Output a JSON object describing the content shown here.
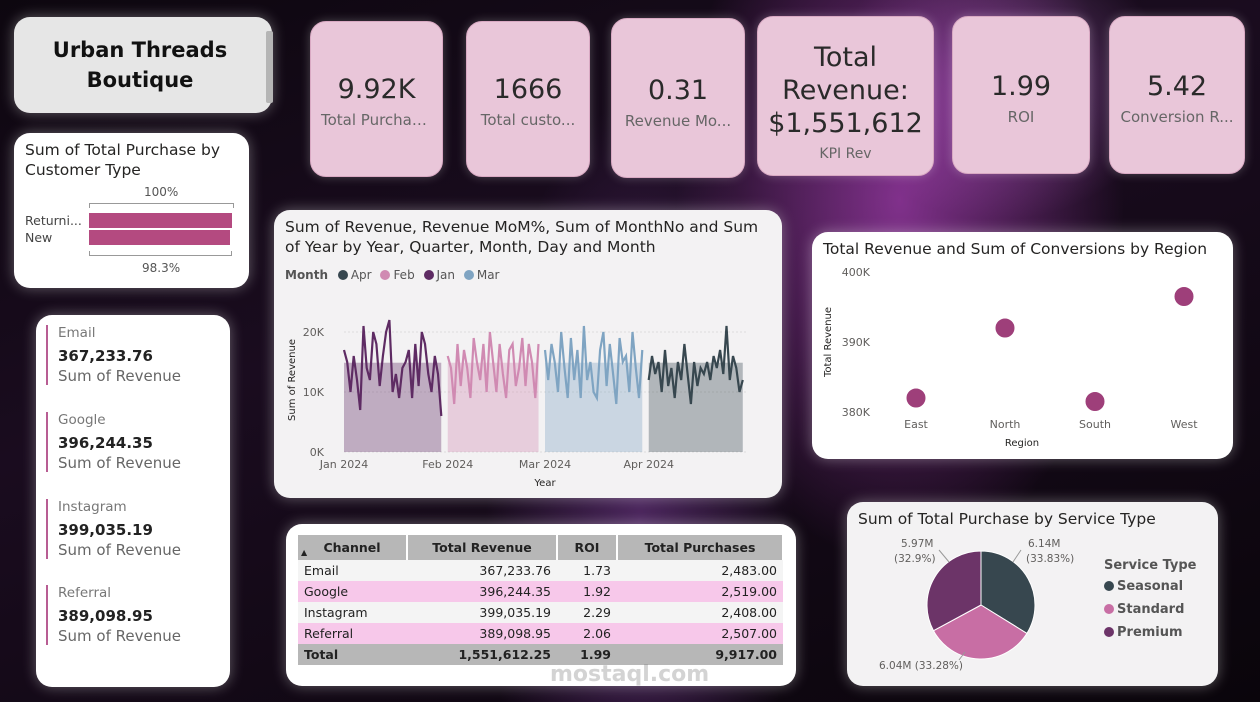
{
  "header": {
    "title": "Urban Threads Boutique"
  },
  "kpis": [
    {
      "value": "9.92K",
      "label": "Total Purchases"
    },
    {
      "value": "1666",
      "label": "Total custo..."
    },
    {
      "value": "0.31",
      "label": "Revenue Mo..."
    },
    {
      "value": "Total Revenue: $1,551,612",
      "label": "KPI Rev"
    },
    {
      "value": "1.99",
      "label": "ROI"
    },
    {
      "value": "5.42",
      "label": "Conversion R..."
    }
  ],
  "customer_type": {
    "title": "Sum of Total Purchase by Customer Type",
    "top_label": "100%",
    "bottom_label": "98.3%",
    "categories": [
      "Returni...",
      "New"
    ],
    "values": [
      100,
      98.3
    ],
    "color": "#b44a80"
  },
  "channel_cards": [
    {
      "name": "Email",
      "value": "367,233.76",
      "sub": "Sum of Revenue"
    },
    {
      "name": "Google",
      "value": "396,244.35",
      "sub": "Sum of Revenue"
    },
    {
      "name": "Instagram",
      "value": "399,035.19",
      "sub": "Sum of Revenue"
    },
    {
      "name": "Referral",
      "value": "389,098.95",
      "sub": "Sum of Revenue"
    }
  ],
  "table": {
    "headers": [
      "Channel",
      "Total Revenue",
      "ROI",
      "Total Purchases"
    ],
    "rows": [
      [
        "Email",
        "367,233.76",
        "1.73",
        "2,483.00"
      ],
      [
        "Google",
        "396,244.35",
        "1.92",
        "2,519.00"
      ],
      [
        "Instagram",
        "399,035.19",
        "2.29",
        "2,408.00"
      ],
      [
        "Referral",
        "389,098.95",
        "2.06",
        "2,507.00"
      ]
    ],
    "total": [
      "Total",
      "1,551,612.25",
      "1.99",
      "9,917.00"
    ]
  },
  "watermark": {
    "text": "mostaql.com"
  },
  "colors": {
    "accent": "#b85d93",
    "kpi_bg": "#e9c6d9",
    "jan": "#5e2b63",
    "feb": "#d08ab2",
    "mar": "#7fa4c2",
    "apr": "#37474f"
  },
  "chart_data": [
    {
      "type": "area",
      "title": "Sum of Revenue, Revenue MoM%, Sum of MonthNo and Sum of Year by Year, Quarter, Month, Day and Month",
      "legend_title": "Month",
      "legend_position": "top-left",
      "xlabel": "Year",
      "ylabel": "Sum of Revenue",
      "x_ticks": [
        "Jan 2024",
        "Feb 2024",
        "Mar 2024",
        "Apr 2024"
      ],
      "y_ticks": [
        "0K",
        "10K",
        "20K"
      ],
      "ylim": [
        0,
        24000
      ],
      "series": [
        {
          "name": "Jan",
          "color": "#5e2b63",
          "values": [
            17000,
            15000,
            10000,
            16000,
            12000,
            7000,
            21000,
            14000,
            12000,
            20000,
            18000,
            11000,
            16000,
            20000,
            22000,
            10000,
            13000,
            9000,
            14000,
            15000,
            17000,
            9000,
            18000,
            11000,
            20000,
            18000,
            13000,
            10000,
            16000,
            13000,
            6000
          ]
        },
        {
          "name": "Feb",
          "color": "#d08ab2",
          "values": [
            16000,
            14000,
            8000,
            18000,
            11000,
            17000,
            14000,
            9000,
            19000,
            15000,
            12000,
            18000,
            10000,
            20000,
            15000,
            10000,
            18000,
            13000,
            9000,
            17000,
            18000,
            11000,
            14000,
            19000,
            11000,
            18000,
            15000,
            9000,
            18000
          ]
        },
        {
          "name": "Mar",
          "color": "#7fa4c2",
          "values": [
            17000,
            12000,
            18000,
            15000,
            10000,
            20000,
            14000,
            9000,
            19000,
            12000,
            17000,
            9000,
            21000,
            12000,
            15000,
            10000,
            9000,
            17000,
            20000,
            11000,
            18000,
            13000,
            8000,
            19000,
            15000,
            16000,
            10000,
            20000,
            14000,
            9000,
            17000
          ]
        },
        {
          "name": "Apr",
          "color": "#37474f",
          "values": [
            12000,
            16000,
            13000,
            15000,
            10000,
            17000,
            11000,
            14000,
            9000,
            15000,
            12000,
            18000,
            13000,
            8000,
            15000,
            11000,
            14000,
            13000,
            15000,
            12000,
            16000,
            14000,
            17000,
            13000,
            21000,
            12000,
            16000,
            14000,
            10000,
            12000
          ]
        }
      ]
    },
    {
      "type": "scatter",
      "title": "Total Revenue and Sum of Conversions by Region",
      "xlabel": "Region",
      "ylabel": "Total Revenue",
      "categories": [
        "East",
        "North",
        "South",
        "West"
      ],
      "values": [
        382000,
        392000,
        381500,
        396500
      ],
      "y_ticks": [
        "380K",
        "390K",
        "400K"
      ],
      "ylim": [
        380000,
        400000
      ],
      "color": "#9e3f7a"
    },
    {
      "type": "pie",
      "title": "Sum of Total Purchase by Service Type",
      "legend_title": "Service Type",
      "legend_position": "right",
      "slices": [
        {
          "name": "Seasonal",
          "value": 6.14,
          "label": "6.14M",
          "pct": "(33.83%)",
          "color": "#37474f"
        },
        {
          "name": "Standard",
          "value": 6.04,
          "label": "6.04M (33.28%)",
          "pct": "",
          "color": "#c86ea4"
        },
        {
          "name": "Premium",
          "value": 5.97,
          "label": "5.97M",
          "pct": "(32.9%)",
          "color": "#6c3468"
        }
      ]
    }
  ]
}
